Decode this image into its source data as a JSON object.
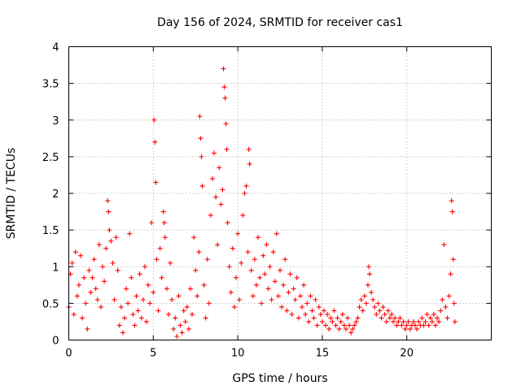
{
  "chart_data": {
    "type": "scatter",
    "title": "Day 156 of 2024, SRMTID for receiver cas1",
    "xlabel": "GPS time / hours",
    "ylabel": "SRMTID / TECUs",
    "xlim": [
      0,
      25
    ],
    "ylim": [
      0,
      4
    ],
    "xticks": [
      0,
      5,
      10,
      15,
      20
    ],
    "yticks": [
      0,
      0.5,
      1,
      1.5,
      2,
      2.5,
      3,
      3.5,
      4
    ],
    "xtick_labels": [
      "0",
      "5",
      "10",
      "15",
      "20"
    ],
    "ytick_labels": [
      "0",
      "0.5",
      "1",
      "1.5",
      "2",
      "2.5",
      "3",
      "3.5",
      "4"
    ],
    "grid": true,
    "marker": "+",
    "color": "#ff0000",
    "series": [
      {
        "name": "SRMTID",
        "points": [
          [
            0.0,
            0.45
          ],
          [
            0.1,
            0.9
          ],
          [
            0.2,
            1.05
          ],
          [
            0.3,
            0.35
          ],
          [
            0.4,
            1.2
          ],
          [
            0.5,
            0.6
          ],
          [
            0.6,
            0.75
          ],
          [
            0.7,
            1.15
          ],
          [
            0.8,
            0.3
          ],
          [
            0.9,
            0.85
          ],
          [
            1.0,
            0.5
          ],
          [
            1.1,
            0.15
          ],
          [
            1.2,
            0.95
          ],
          [
            1.3,
            0.65
          ],
          [
            1.4,
            0.85
          ],
          [
            1.5,
            1.1
          ],
          [
            1.6,
            0.7
          ],
          [
            1.7,
            0.55
          ],
          [
            1.8,
            1.3
          ],
          [
            1.9,
            0.45
          ],
          [
            2.0,
            1.0
          ],
          [
            2.1,
            0.8
          ],
          [
            2.2,
            1.25
          ],
          [
            2.3,
            1.9
          ],
          [
            2.35,
            1.75
          ],
          [
            2.4,
            1.5
          ],
          [
            2.5,
            1.35
          ],
          [
            2.6,
            1.05
          ],
          [
            2.7,
            0.55
          ],
          [
            2.8,
            1.4
          ],
          [
            2.9,
            0.95
          ],
          [
            3.0,
            0.2
          ],
          [
            3.1,
            0.45
          ],
          [
            3.2,
            0.1
          ],
          [
            3.3,
            0.3
          ],
          [
            3.4,
            0.7
          ],
          [
            3.5,
            0.5
          ],
          [
            3.6,
            1.45
          ],
          [
            3.7,
            0.85
          ],
          [
            3.8,
            0.35
          ],
          [
            3.9,
            0.2
          ],
          [
            4.0,
            0.6
          ],
          [
            4.1,
            0.4
          ],
          [
            4.2,
            0.9
          ],
          [
            4.3,
            0.3
          ],
          [
            4.4,
            0.55
          ],
          [
            4.5,
            1.0
          ],
          [
            4.6,
            0.25
          ],
          [
            4.7,
            0.75
          ],
          [
            4.8,
            0.5
          ],
          [
            4.9,
            1.6
          ],
          [
            5.0,
            0.65
          ],
          [
            5.05,
            3.0
          ],
          [
            5.1,
            2.7
          ],
          [
            5.15,
            2.15
          ],
          [
            5.2,
            1.1
          ],
          [
            5.3,
            0.4
          ],
          [
            5.4,
            1.25
          ],
          [
            5.5,
            0.85
          ],
          [
            5.6,
            1.75
          ],
          [
            5.65,
            1.6
          ],
          [
            5.7,
            1.4
          ],
          [
            5.8,
            0.7
          ],
          [
            5.9,
            0.35
          ],
          [
            6.0,
            1.05
          ],
          [
            6.1,
            0.55
          ],
          [
            6.2,
            0.15
          ],
          [
            6.3,
            0.3
          ],
          [
            6.4,
            0.05
          ],
          [
            6.5,
            0.6
          ],
          [
            6.6,
            0.2
          ],
          [
            6.7,
            0.1
          ],
          [
            6.8,
            0.4
          ],
          [
            6.9,
            0.25
          ],
          [
            7.0,
            0.45
          ],
          [
            7.1,
            0.15
          ],
          [
            7.2,
            0.7
          ],
          [
            7.3,
            0.35
          ],
          [
            7.4,
            1.4
          ],
          [
            7.5,
            0.95
          ],
          [
            7.6,
            0.6
          ],
          [
            7.7,
            1.2
          ],
          [
            7.75,
            3.05
          ],
          [
            7.8,
            2.75
          ],
          [
            7.85,
            2.5
          ],
          [
            7.9,
            2.1
          ],
          [
            8.0,
            0.75
          ],
          [
            8.1,
            0.3
          ],
          [
            8.2,
            1.1
          ],
          [
            8.3,
            0.5
          ],
          [
            8.4,
            1.7
          ],
          [
            8.5,
            2.2
          ],
          [
            8.6,
            2.55
          ],
          [
            8.7,
            1.95
          ],
          [
            8.8,
            1.3
          ],
          [
            8.9,
            2.35
          ],
          [
            9.0,
            1.85
          ],
          [
            9.1,
            2.05
          ],
          [
            9.15,
            3.7
          ],
          [
            9.2,
            3.45
          ],
          [
            9.25,
            3.3
          ],
          [
            9.3,
            2.95
          ],
          [
            9.35,
            2.6
          ],
          [
            9.4,
            1.6
          ],
          [
            9.5,
            1.0
          ],
          [
            9.6,
            0.65
          ],
          [
            9.7,
            1.25
          ],
          [
            9.8,
            0.45
          ],
          [
            9.9,
            0.85
          ],
          [
            10.0,
            1.45
          ],
          [
            10.1,
            0.55
          ],
          [
            10.2,
            1.05
          ],
          [
            10.3,
            1.7
          ],
          [
            10.4,
            2.0
          ],
          [
            10.5,
            2.1
          ],
          [
            10.6,
            1.2
          ],
          [
            10.65,
            2.6
          ],
          [
            10.7,
            2.4
          ],
          [
            10.8,
            0.95
          ],
          [
            10.9,
            0.6
          ],
          [
            11.0,
            1.1
          ],
          [
            11.1,
            0.75
          ],
          [
            11.2,
            1.4
          ],
          [
            11.3,
            0.85
          ],
          [
            11.4,
            0.5
          ],
          [
            11.5,
            1.15
          ],
          [
            11.6,
            0.9
          ],
          [
            11.7,
            1.3
          ],
          [
            11.8,
            0.7
          ],
          [
            11.9,
            1.0
          ],
          [
            12.0,
            0.55
          ],
          [
            12.1,
            1.2
          ],
          [
            12.2,
            0.8
          ],
          [
            12.3,
            1.45
          ],
          [
            12.4,
            0.6
          ],
          [
            12.5,
            0.95
          ],
          [
            12.6,
            0.45
          ],
          [
            12.7,
            0.75
          ],
          [
            12.8,
            1.1
          ],
          [
            12.9,
            0.4
          ],
          [
            13.0,
            0.65
          ],
          [
            13.1,
            0.9
          ],
          [
            13.2,
            0.35
          ],
          [
            13.3,
            0.7
          ],
          [
            13.4,
            0.55
          ],
          [
            13.5,
            0.85
          ],
          [
            13.6,
            0.3
          ],
          [
            13.7,
            0.6
          ],
          [
            13.8,
            0.45
          ],
          [
            13.9,
            0.75
          ],
          [
            14.0,
            0.35
          ],
          [
            14.1,
            0.5
          ],
          [
            14.2,
            0.25
          ],
          [
            14.3,
            0.6
          ],
          [
            14.4,
            0.4
          ],
          [
            14.5,
            0.3
          ],
          [
            14.6,
            0.55
          ],
          [
            14.7,
            0.2
          ],
          [
            14.8,
            0.45
          ],
          [
            14.9,
            0.35
          ],
          [
            15.0,
            0.25
          ],
          [
            15.1,
            0.4
          ],
          [
            15.2,
            0.2
          ],
          [
            15.3,
            0.35
          ],
          [
            15.4,
            0.15
          ],
          [
            15.5,
            0.3
          ],
          [
            15.6,
            0.25
          ],
          [
            15.7,
            0.4
          ],
          [
            15.8,
            0.2
          ],
          [
            15.9,
            0.3
          ],
          [
            16.0,
            0.15
          ],
          [
            16.1,
            0.25
          ],
          [
            16.2,
            0.35
          ],
          [
            16.3,
            0.2
          ],
          [
            16.4,
            0.15
          ],
          [
            16.5,
            0.3
          ],
          [
            16.6,
            0.2
          ],
          [
            16.7,
            0.1
          ],
          [
            16.8,
            0.15
          ],
          [
            16.9,
            0.2
          ],
          [
            17.0,
            0.25
          ],
          [
            17.1,
            0.3
          ],
          [
            17.2,
            0.45
          ],
          [
            17.3,
            0.55
          ],
          [
            17.4,
            0.4
          ],
          [
            17.5,
            0.6
          ],
          [
            17.6,
            0.5
          ],
          [
            17.7,
            0.75
          ],
          [
            17.75,
            1.0
          ],
          [
            17.8,
            0.9
          ],
          [
            17.9,
            0.65
          ],
          [
            18.0,
            0.55
          ],
          [
            18.1,
            0.45
          ],
          [
            18.2,
            0.35
          ],
          [
            18.3,
            0.5
          ],
          [
            18.4,
            0.4
          ],
          [
            18.5,
            0.3
          ],
          [
            18.6,
            0.45
          ],
          [
            18.7,
            0.35
          ],
          [
            18.8,
            0.25
          ],
          [
            18.9,
            0.4
          ],
          [
            19.0,
            0.3
          ],
          [
            19.1,
            0.35
          ],
          [
            19.2,
            0.25
          ],
          [
            19.3,
            0.3
          ],
          [
            19.4,
            0.2
          ],
          [
            19.5,
            0.25
          ],
          [
            19.6,
            0.3
          ],
          [
            19.7,
            0.2
          ],
          [
            19.8,
            0.25
          ],
          [
            19.9,
            0.15
          ],
          [
            20.0,
            0.2
          ],
          [
            20.1,
            0.25
          ],
          [
            20.2,
            0.15
          ],
          [
            20.3,
            0.2
          ],
          [
            20.4,
            0.25
          ],
          [
            20.5,
            0.2
          ],
          [
            20.6,
            0.15
          ],
          [
            20.7,
            0.25
          ],
          [
            20.8,
            0.2
          ],
          [
            20.9,
            0.3
          ],
          [
            21.0,
            0.2
          ],
          [
            21.1,
            0.25
          ],
          [
            21.2,
            0.35
          ],
          [
            21.3,
            0.2
          ],
          [
            21.4,
            0.3
          ],
          [
            21.5,
            0.25
          ],
          [
            21.6,
            0.35
          ],
          [
            21.7,
            0.2
          ],
          [
            21.8,
            0.3
          ],
          [
            21.9,
            0.25
          ],
          [
            22.0,
            0.4
          ],
          [
            22.1,
            0.55
          ],
          [
            22.2,
            1.3
          ],
          [
            22.3,
            0.45
          ],
          [
            22.4,
            0.3
          ],
          [
            22.5,
            0.6
          ],
          [
            22.6,
            0.9
          ],
          [
            22.65,
            1.9
          ],
          [
            22.7,
            1.75
          ],
          [
            22.75,
            1.1
          ],
          [
            22.8,
            0.5
          ],
          [
            22.85,
            0.25
          ]
        ]
      }
    ]
  }
}
